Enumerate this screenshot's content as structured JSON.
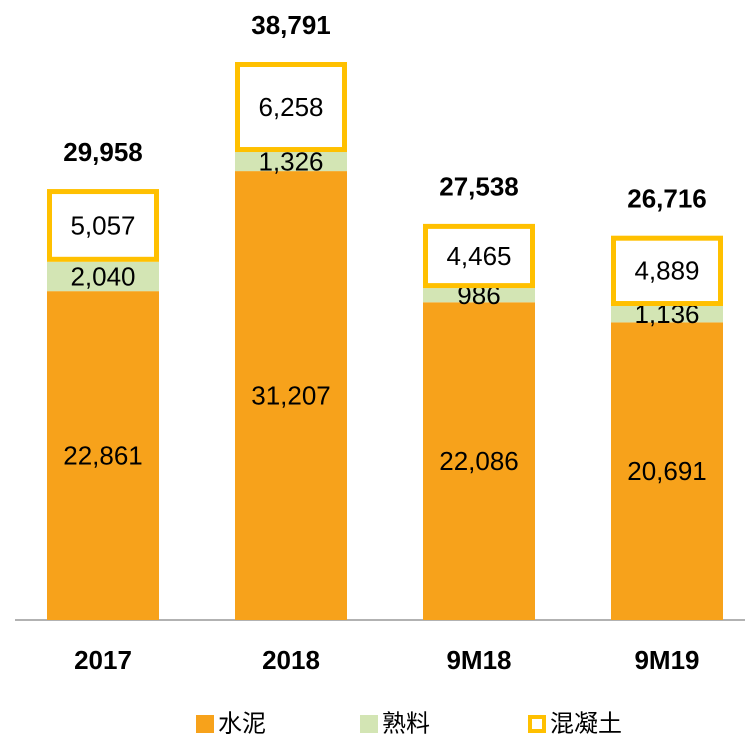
{
  "chart_data": {
    "type": "stacked_bar",
    "categories": [
      "2017",
      "2018",
      "9M18",
      "9M19"
    ],
    "series": [
      {
        "name": "水泥",
        "color": "#f7a21b",
        "values": [
          22861,
          31207,
          22086,
          20691
        ],
        "value_labels": [
          "22,861",
          "31,207",
          "22,086",
          "20,691"
        ]
      },
      {
        "name": "熟料",
        "color": "#d3e5b4",
        "values": [
          2040,
          1326,
          986,
          1136
        ],
        "value_labels": [
          "2,040",
          "1,326",
          "986",
          "1,136"
        ]
      },
      {
        "name": "混凝土",
        "color": "#ffc000",
        "fill": "#ffffff",
        "values": [
          5057,
          6258,
          4465,
          4889
        ],
        "value_labels": [
          "5,057",
          "6,258",
          "4,465",
          "4,889"
        ]
      }
    ],
    "totals": [
      29958,
      38791,
      27538,
      26716
    ],
    "total_labels": [
      "29,958",
      "38,791",
      "27,538",
      "26,716"
    ],
    "legend": "bottom"
  }
}
